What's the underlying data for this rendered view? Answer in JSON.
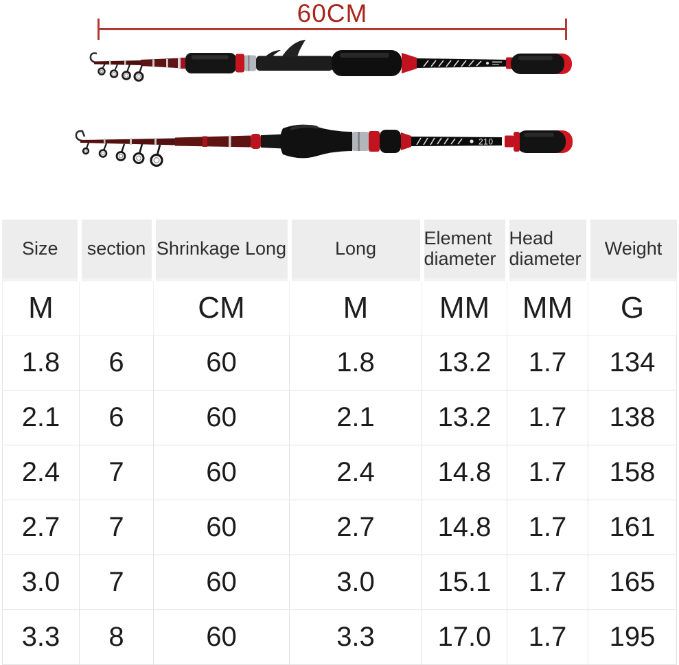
{
  "annotation": {
    "length_label": "60CM"
  },
  "rods": {
    "top": {
      "style": "casting-telescopic-rod"
    },
    "bottom": {
      "style": "spinning-telescopic-rod",
      "blank_label": "210"
    }
  },
  "table": {
    "headers": [
      {
        "label": "Size",
        "unit": "M"
      },
      {
        "label": "section",
        "unit": ""
      },
      {
        "label": "Shrinkage Long",
        "unit": "CM"
      },
      {
        "label": "Long",
        "unit": "M"
      },
      {
        "label": "Element diameter",
        "unit": "MM"
      },
      {
        "label": "Head diameter",
        "unit": "MM"
      },
      {
        "label": "Weight",
        "unit": "G"
      }
    ],
    "rows": [
      [
        "1.8",
        "6",
        "60",
        "1.8",
        "13.2",
        "1.7",
        "134"
      ],
      [
        "2.1",
        "6",
        "60",
        "2.1",
        "13.2",
        "1.7",
        "138"
      ],
      [
        "2.4",
        "7",
        "60",
        "2.4",
        "14.8",
        "1.7",
        "158"
      ],
      [
        "2.7",
        "7",
        "60",
        "2.7",
        "14.8",
        "1.7",
        "161"
      ],
      [
        "3.0",
        "7",
        "60",
        "3.0",
        "15.1",
        "1.7",
        "165"
      ],
      [
        "3.3",
        "8",
        "60",
        "3.3",
        "17.0",
        "1.7",
        "195"
      ]
    ]
  },
  "colors": {
    "annotation_red": "#a8251e",
    "rod_bright_red": "#c2141f",
    "rod_dark_red": "#5d1413",
    "header_bg": "#ededed",
    "grid_line": "#e3e3e3"
  }
}
